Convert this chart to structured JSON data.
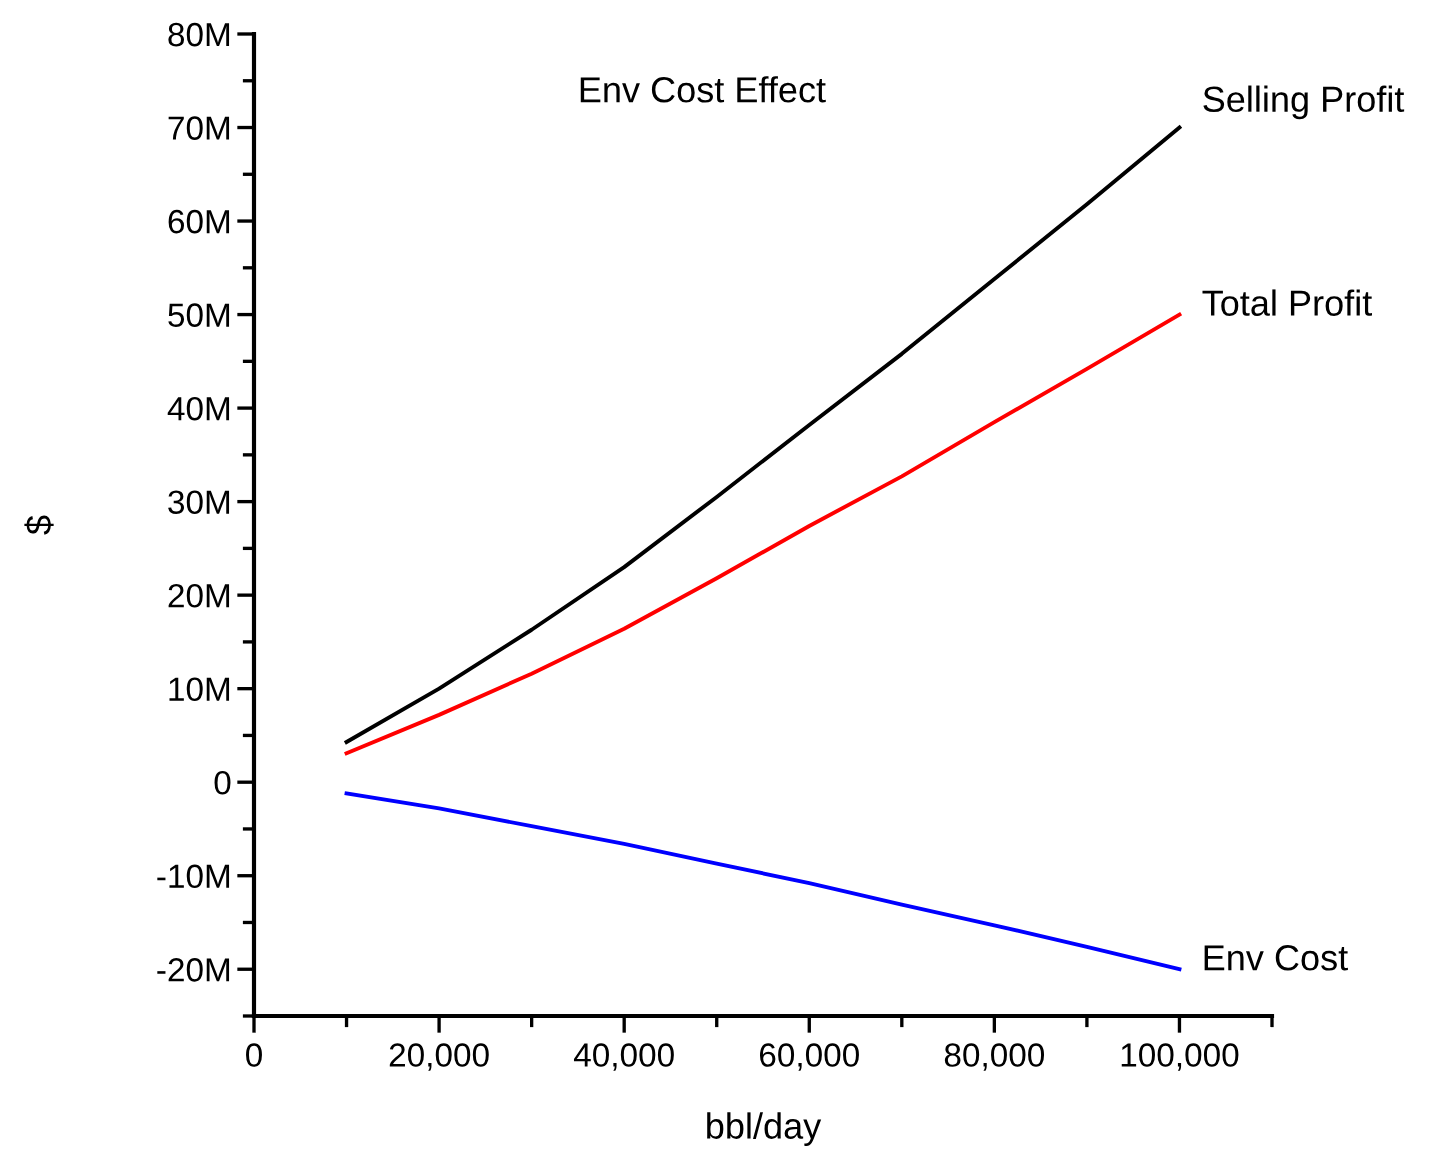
{
  "chart_data": {
    "type": "line",
    "title": "Env Cost Effect",
    "xlabel": "bbl/day",
    "ylabel": "$",
    "x": [
      10000,
      20000,
      30000,
      40000,
      50000,
      60000,
      70000,
      80000,
      90000,
      100000
    ],
    "series": [
      {
        "name": "Selling Profit",
        "color": "#000000",
        "values": [
          4.3,
          10,
          16.3,
          23,
          30.5,
          38.2,
          45.8,
          53.8,
          61.8,
          70
        ]
      },
      {
        "name": "Total Profit",
        "color": "#ff0000",
        "values": [
          3.1,
          7.2,
          11.6,
          16.4,
          21.8,
          27.4,
          32.7,
          38.5,
          44.2,
          50
        ]
      },
      {
        "name": "Env Cost",
        "color": "#0000ff",
        "values": [
          -1.2,
          -2.8,
          -4.7,
          -6.6,
          -8.7,
          -10.8,
          -13.1,
          -15.3,
          -17.6,
          -20
        ]
      }
    ],
    "xlim": [
      0,
      110000
    ],
    "xticks": [
      0,
      {
        "value": 20000,
        "label": "20,000"
      },
      {
        "value": 40000,
        "label": "40,000"
      },
      {
        "value": 60000,
        "label": "60,000"
      },
      {
        "value": 80000,
        "label": "80,000"
      },
      {
        "value": 100000,
        "label": "100,000"
      }
    ],
    "ylim": [
      -25,
      80
    ],
    "yticks": [
      {
        "value": -20,
        "label": "-20M"
      },
      {
        "value": -10,
        "label": "-10M"
      },
      0,
      {
        "value": 10,
        "label": "10M"
      },
      {
        "value": 20,
        "label": "20M"
      },
      {
        "value": 30,
        "label": "30M"
      },
      {
        "value": 40,
        "label": "40M"
      },
      {
        "value": 50,
        "label": "50M"
      },
      {
        "value": 60,
        "label": "60M"
      },
      {
        "value": 70,
        "label": "70M"
      },
      {
        "value": 80,
        "label": "80M"
      }
    ],
    "grid": false,
    "legend": false,
    "marker": "none",
    "line_style": "solid"
  }
}
